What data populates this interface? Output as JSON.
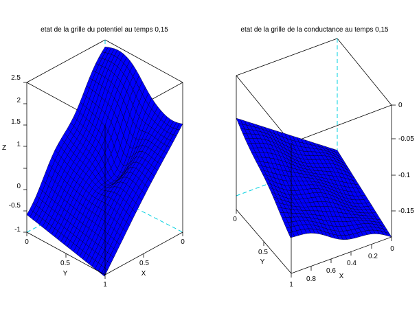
{
  "chart_data": [
    {
      "type": "surface3d",
      "title": "etat de la grille du potentiel au temps 0,15",
      "xlabel": "X",
      "ylabel": "Y",
      "zlabel": "Z",
      "xlim": [
        0,
        1
      ],
      "ylim": [
        0,
        1
      ],
      "zlim": [
        -1,
        2.5
      ],
      "x_ticks": [
        "0",
        "0.5",
        "1"
      ],
      "y_ticks": [
        "0",
        "0.5",
        "1"
      ],
      "z_ticks": [
        "-1",
        "-0.5",
        "0",
        "0.5",
        "1",
        "1.5",
        "2",
        "2.5"
      ],
      "grid_points": 25,
      "surface_color": "#0000ff",
      "mesh_color": "#000000",
      "axis_hidden_color": "#00d0e0",
      "z_grid_corner_values": {
        "x0y0": 2.4,
        "x1y0": 1.6,
        "x0y1": -0.55,
        "x1y1": -1.1
      }
    },
    {
      "type": "surface3d",
      "title": "etat de la grille de la conductance au temps 0,15",
      "xlabel": "X",
      "ylabel": "Y",
      "xlim": [
        0,
        1
      ],
      "ylim": [
        0,
        1
      ],
      "zlim": [
        -0.17,
        0
      ],
      "x_ticks": [
        "0",
        "0.2",
        "0.4",
        "0.6",
        "0.8"
      ],
      "y_ticks": [
        "0",
        "0.5",
        "1"
      ],
      "z_ticks": [
        "0",
        "-0.05",
        "-0.1",
        "-0.15"
      ],
      "grid_points": 25,
      "surface_color": "#0000ff",
      "mesh_color": "#000000",
      "axis_hidden_color": "#00d0e0",
      "z_grid_corner_values": {
        "x0y0": -0.16,
        "x1y0": -0.07,
        "x0y1": -0.17,
        "x1y1": -0.12
      }
    }
  ]
}
